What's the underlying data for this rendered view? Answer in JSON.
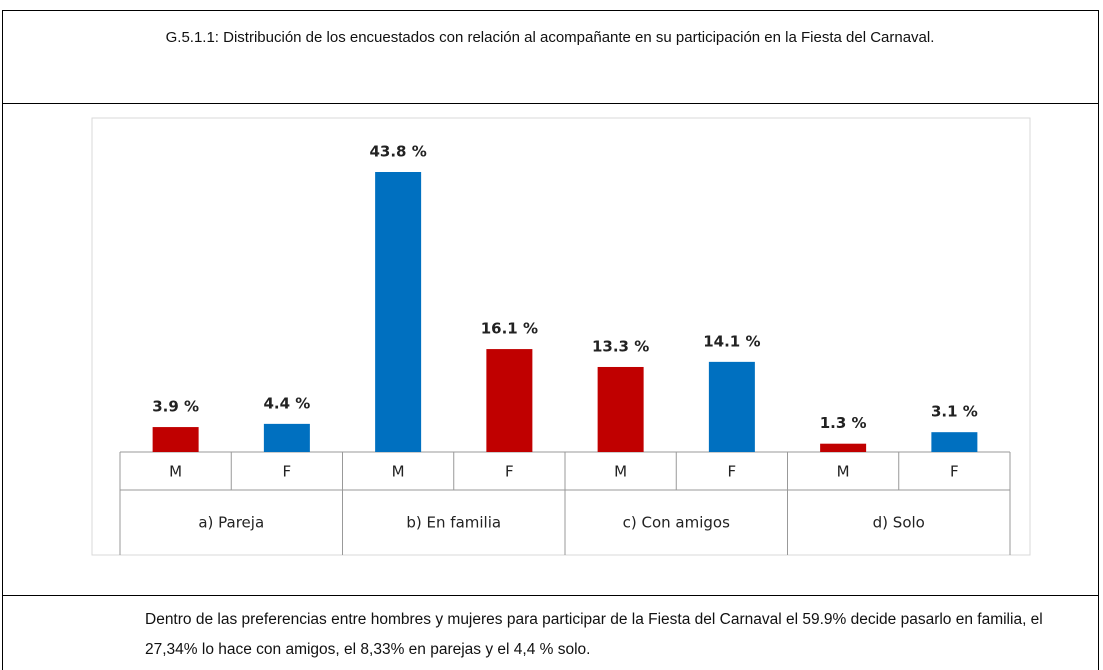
{
  "caption": "G.5.1.1: Distribución de los encuestados con relación al acompañante en su participación en la Fiesta del Carnaval.",
  "chart_data": {
    "type": "bar",
    "groups": [
      "a) Pareja",
      "b) En familia",
      "c) Con amigos",
      "d) Solo"
    ],
    "categories": [
      "M",
      "F",
      "M",
      "F",
      "M",
      "F",
      "M",
      "F"
    ],
    "values": [
      3.9,
      4.4,
      43.8,
      16.1,
      13.3,
      14.1,
      1.3,
      3.1
    ],
    "value_labels": [
      "3.9 %",
      "4.4 %",
      "43.8 %",
      "16.1 %",
      "13.3 %",
      "14.1 %",
      "1.3 %",
      "3.1 %"
    ],
    "colors": [
      "#c00000",
      "#0070c0",
      "#0070c0",
      "#c00000",
      "#c00000",
      "#0070c0",
      "#c00000",
      "#0070c0"
    ]
  },
  "description": "Dentro de las preferencias entre hombres y mujeres para participar de la Fiesta del Carnaval el 59.9% decide pasarlo en familia, el 27,34% lo hace con amigos, el 8,33% en parejas y el 4,4 % solo."
}
